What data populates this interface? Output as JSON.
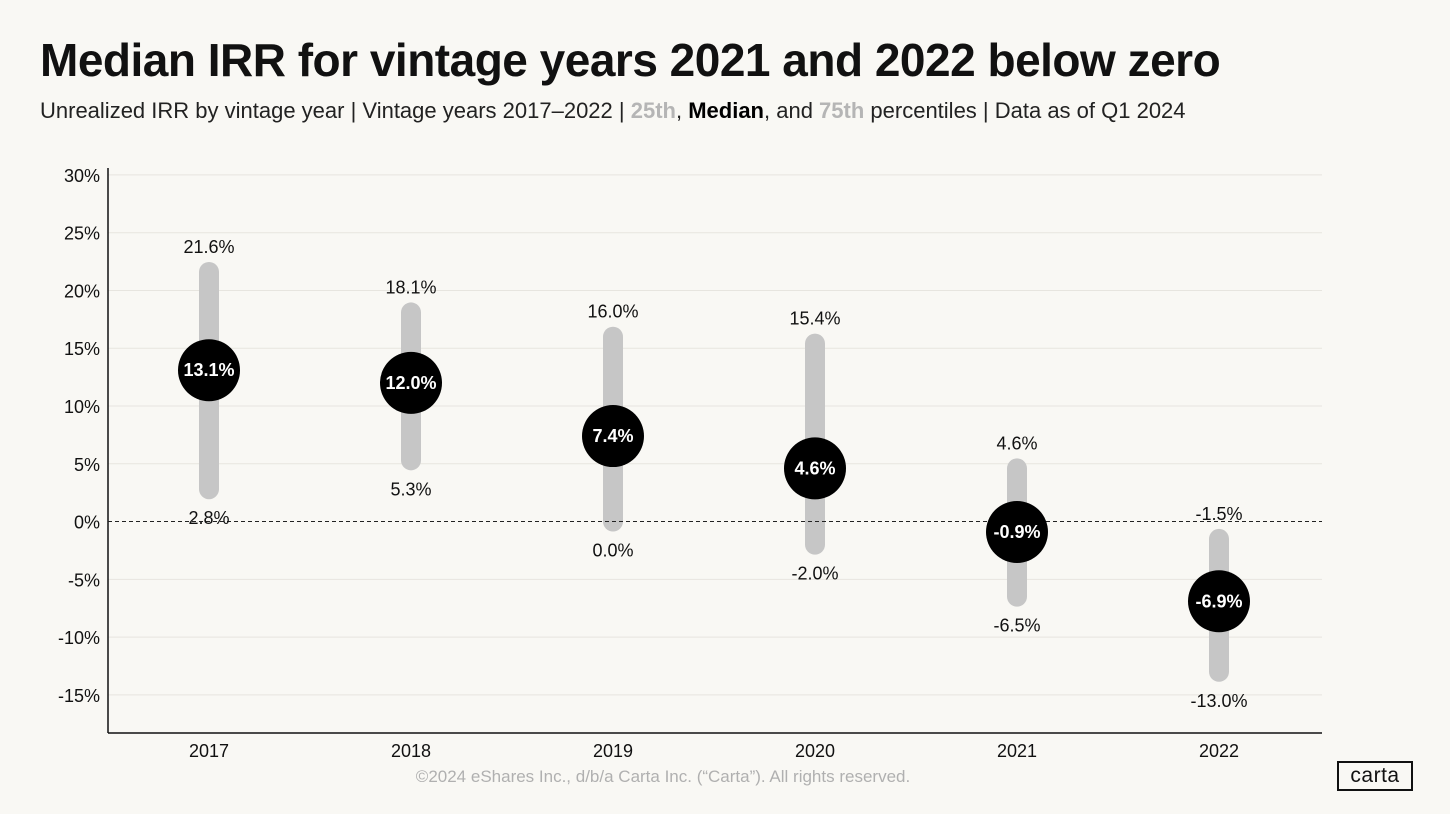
{
  "title": "Median IRR for vintage years 2021 and 2022 below zero",
  "subtitle": {
    "part1": "Unrealized IRR by vintage year | Vintage years 2017–2022 | ",
    "p25": "25th",
    "sep1": ", ",
    "median": "Median",
    "sep2": ", and ",
    "p75": "75th",
    "part2": " percentiles | Data as of Q1 2024"
  },
  "footer": "©2024 eShares Inc., d/b/a Carta Inc. (“Carta”). All rights reserved.",
  "logo": "carta",
  "chart_data": {
    "type": "range",
    "categories": [
      "2017",
      "2018",
      "2019",
      "2020",
      "2021",
      "2022"
    ],
    "p75": [
      21.6,
      18.1,
      16.0,
      15.4,
      4.6,
      -1.5
    ],
    "median": [
      13.1,
      12.0,
      7.4,
      4.6,
      -0.9,
      -6.9
    ],
    "p25": [
      2.8,
      5.3,
      0.0,
      -2.0,
      -6.5,
      -13.0
    ],
    "p75_labels": [
      "21.6%",
      "18.1%",
      "16.0%",
      "15.4%",
      "4.6%",
      "-1.5%"
    ],
    "median_labels": [
      "13.1%",
      "12.0%",
      "7.4%",
      "4.6%",
      "-0.9%",
      "-6.9%"
    ],
    "p25_labels": [
      "2.8%",
      "5.3%",
      "0.0%",
      "-2.0%",
      "-6.5%",
      "-13.0%"
    ],
    "yticks": [
      30,
      25,
      20,
      15,
      10,
      5,
      0,
      -5,
      -10,
      -15
    ],
    "ytick_labels": [
      "30%",
      "25%",
      "20%",
      "15%",
      "10%",
      "5%",
      "0%",
      "-5%",
      "-10%",
      "-15%"
    ],
    "ylim": [
      -18.3,
      30.6
    ],
    "zero_line": "dashed",
    "grid": true,
    "colors": {
      "range": "#c6c6c6",
      "median": "#000000",
      "median_text": "#ffffff",
      "grid": "#e7e5df"
    }
  }
}
